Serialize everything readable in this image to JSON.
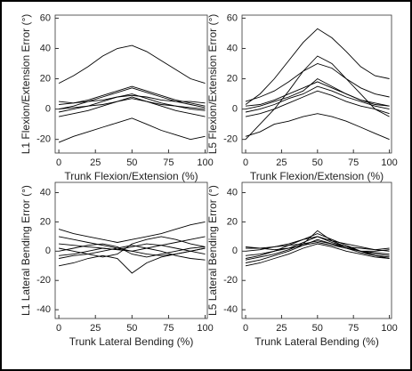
{
  "chart_data": [
    {
      "type": "line",
      "ylabel": "L1 Flexion/Extension Error (°)",
      "xlabel": "Trunk Flexion/Extension (%)",
      "x": [
        0,
        10,
        20,
        30,
        40,
        50,
        60,
        70,
        80,
        90,
        100
      ],
      "xlim": [
        -2.5,
        101.5
      ],
      "ylim": [
        -29,
        62
      ],
      "xticks": [
        0,
        25,
        50,
        75,
        100
      ],
      "yticks": [
        -20,
        0,
        20,
        40,
        60
      ],
      "series": [
        {
          "color": "#000",
          "values": [
            17,
            22,
            28,
            35,
            40,
            42,
            38,
            32,
            26,
            20,
            17
          ]
        },
        {
          "color": "#000",
          "values": [
            0,
            2,
            5,
            8,
            11,
            14,
            11,
            8,
            5,
            3,
            1
          ]
        },
        {
          "color": "#000",
          "values": [
            3,
            4,
            6,
            9,
            12,
            15,
            12,
            9,
            6,
            4,
            2
          ]
        },
        {
          "color": "#000",
          "values": [
            -2,
            0,
            2,
            5,
            8,
            10,
            7,
            4,
            2,
            0,
            -1
          ]
        },
        {
          "color": "#000",
          "values": [
            5,
            4,
            5,
            6,
            8,
            9,
            8,
            6,
            5,
            5,
            4
          ]
        },
        {
          "color": "#000",
          "values": [
            -5,
            -3,
            -1,
            2,
            5,
            8,
            5,
            2,
            -1,
            -3,
            -5
          ]
        },
        {
          "color": "#000",
          "values": [
            -22,
            -18,
            -15,
            -12,
            -9,
            -6,
            -10,
            -14,
            -17,
            -20,
            -18
          ]
        },
        {
          "color": "#000",
          "values": [
            0,
            1,
            2,
            3,
            5,
            7,
            5,
            3,
            2,
            1,
            0
          ]
        }
      ]
    },
    {
      "type": "line",
      "ylabel": "L5 Flexion/Extension Error (°)",
      "xlabel": "Trunk Flexion/Extension (%)",
      "x": [
        0,
        10,
        20,
        30,
        40,
        50,
        60,
        70,
        80,
        90,
        100
      ],
      "xlim": [
        -2.5,
        101.5
      ],
      "ylim": [
        -29,
        62
      ],
      "xticks": [
        0,
        25,
        50,
        75,
        100
      ],
      "yticks": [
        -20,
        0,
        20,
        40,
        60
      ],
      "series": [
        {
          "color": "#000",
          "values": [
            3,
            10,
            20,
            32,
            44,
            53,
            47,
            38,
            28,
            22,
            20
          ]
        },
        {
          "color": "#000",
          "values": [
            -20,
            -10,
            0,
            12,
            25,
            35,
            30,
            20,
            10,
            0,
            -5
          ]
        },
        {
          "color": "#000",
          "values": [
            5,
            8,
            12,
            18,
            25,
            30,
            27,
            20,
            14,
            10,
            8
          ]
        },
        {
          "color": "#000",
          "values": [
            0,
            2,
            5,
            8,
            12,
            20,
            15,
            10,
            6,
            4,
            2
          ]
        },
        {
          "color": "#000",
          "values": [
            -2,
            0,
            3,
            7,
            10,
            15,
            12,
            8,
            5,
            2,
            0
          ]
        },
        {
          "color": "#000",
          "values": [
            -18,
            -15,
            -10,
            -8,
            -5,
            -3,
            -5,
            -8,
            -12,
            -16,
            -20
          ]
        },
        {
          "color": "#000",
          "values": [
            2,
            3,
            6,
            10,
            14,
            18,
            14,
            10,
            6,
            3,
            2
          ]
        },
        {
          "color": "#000",
          "values": [
            -5,
            -3,
            0,
            4,
            8,
            12,
            9,
            5,
            2,
            0,
            -3
          ]
        }
      ]
    },
    {
      "type": "line",
      "ylabel": "L1 Lateral Bending Error (°)",
      "xlabel": "Trunk Lateral Bending (%)",
      "x": [
        0,
        10,
        20,
        30,
        40,
        50,
        60,
        70,
        80,
        90,
        100
      ],
      "xlim": [
        -2.5,
        101.5
      ],
      "ylim": [
        -46,
        47
      ],
      "xticks": [
        0,
        25,
        50,
        75,
        100
      ],
      "yticks": [
        -40,
        -20,
        0,
        20,
        40
      ],
      "series": [
        {
          "color": "#000",
          "values": [
            15,
            12,
            10,
            8,
            6,
            8,
            10,
            12,
            15,
            18,
            20
          ]
        },
        {
          "color": "#000",
          "values": [
            -5,
            -3,
            -2,
            0,
            2,
            4,
            2,
            0,
            -3,
            -5,
            -6
          ]
        },
        {
          "color": "#000",
          "values": [
            5,
            4,
            3,
            2,
            1,
            0,
            -2,
            -3,
            -2,
            0,
            2
          ]
        },
        {
          "color": "#000",
          "values": [
            0,
            2,
            4,
            5,
            3,
            -2,
            -4,
            -2,
            0,
            2,
            3
          ]
        },
        {
          "color": "#000",
          "values": [
            -10,
            -8,
            -5,
            -3,
            -5,
            -15,
            -8,
            -4,
            -2,
            0,
            2
          ]
        },
        {
          "color": "#000",
          "values": [
            10,
            8,
            6,
            4,
            2,
            0,
            2,
            4,
            6,
            8,
            10
          ]
        },
        {
          "color": "#000",
          "values": [
            -3,
            -2,
            0,
            2,
            1,
            3,
            5,
            4,
            2,
            0,
            -2
          ]
        },
        {
          "color": "#000",
          "values": [
            2,
            0,
            -2,
            -4,
            -2,
            5,
            8,
            10,
            8,
            5,
            3
          ]
        }
      ]
    },
    {
      "type": "line",
      "ylabel": "L5 Lateral Bending Error (°)",
      "xlabel": "Trunk Lateral Bending (%)",
      "x": [
        0,
        10,
        20,
        30,
        40,
        50,
        60,
        70,
        80,
        90,
        100
      ],
      "xlim": [
        -2.5,
        101.5
      ],
      "ylim": [
        -46,
        47
      ],
      "xticks": [
        0,
        25,
        50,
        75,
        100
      ],
      "yticks": [
        -40,
        -20,
        0,
        20,
        40
      ],
      "series": [
        {
          "color": "#000",
          "values": [
            -10,
            -8,
            -5,
            -2,
            2,
            5,
            3,
            0,
            -2,
            -4,
            -5
          ]
        },
        {
          "color": "#000",
          "values": [
            -5,
            -3,
            0,
            4,
            8,
            12,
            8,
            4,
            0,
            -3,
            -5
          ]
        },
        {
          "color": "#000",
          "values": [
            0,
            1,
            3,
            5,
            8,
            10,
            7,
            5,
            3,
            1,
            0
          ]
        },
        {
          "color": "#000",
          "values": [
            -8,
            -6,
            -3,
            0,
            4,
            8,
            5,
            2,
            -1,
            -3,
            -4
          ]
        },
        {
          "color": "#000",
          "values": [
            2,
            2,
            3,
            4,
            5,
            7,
            5,
            3,
            2,
            1,
            2
          ]
        },
        {
          "color": "#000",
          "values": [
            -3,
            -2,
            0,
            2,
            6,
            10,
            6,
            3,
            0,
            -1,
            -2
          ]
        },
        {
          "color": "#000",
          "values": [
            3,
            2,
            1,
            2,
            4,
            6,
            4,
            2,
            0,
            0,
            1
          ]
        },
        {
          "color": "#000",
          "values": [
            -6,
            -4,
            -2,
            1,
            5,
            14,
            7,
            3,
            0,
            -2,
            -3
          ]
        }
      ]
    }
  ]
}
